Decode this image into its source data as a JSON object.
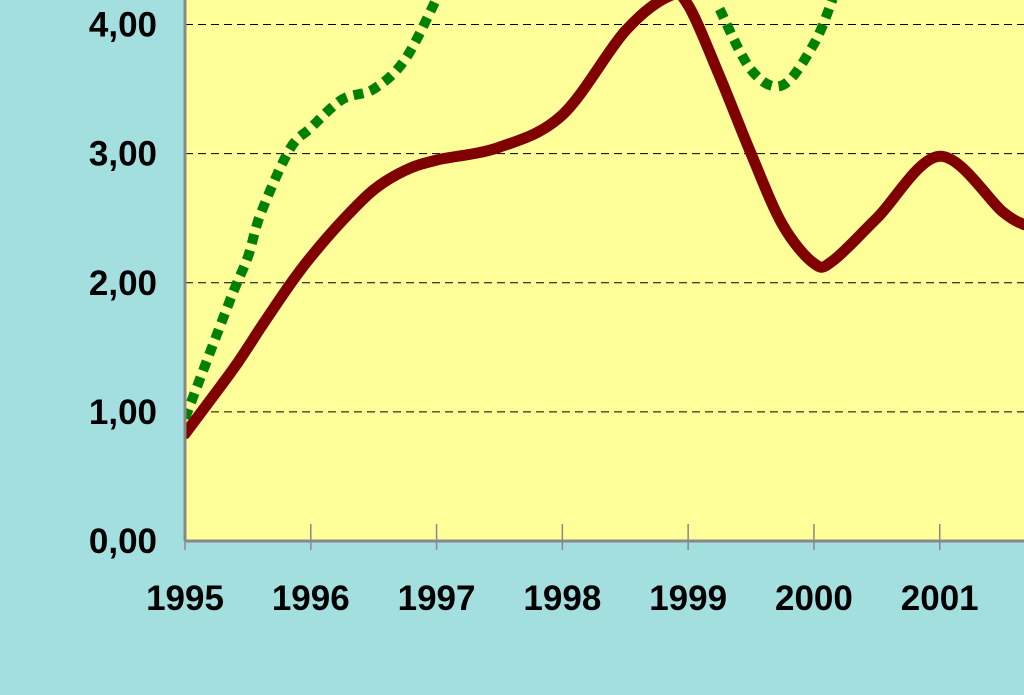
{
  "chart_data": {
    "type": "line",
    "x": [
      1995,
      1995.36,
      1995.5,
      1995.6,
      1995.83,
      1996,
      1996.25,
      1996.5,
      1996.75,
      1997,
      1997.5,
      1998,
      1998.5,
      1998.85,
      1999,
      1999.25,
      1999.5,
      1999.75,
      2000,
      2000.15,
      2000.5,
      2001,
      2001.5,
      2001.67
    ],
    "series": [
      {
        "color": "#800000",
        "style": "solid",
        "values": [
          0.83,
          1.3,
          1.5,
          1.65,
          1.98,
          2.2,
          2.48,
          2.72,
          2.87,
          2.95,
          3.05,
          3.3,
          3.95,
          4.22,
          4.15,
          3.6,
          3.0,
          2.45,
          2.15,
          2.17,
          2.5,
          2.98,
          2.55,
          2.45
        ]
      },
      {
        "color": "#008000",
        "style": "dotted",
        "values": [
          0.95,
          1.87,
          2.2,
          2.53,
          3.03,
          3.2,
          3.42,
          3.5,
          3.73,
          4.2,
          null,
          null,
          null,
          null,
          null,
          4.12,
          3.65,
          3.53,
          3.85,
          4.2,
          null,
          null,
          null,
          null
        ]
      }
    ],
    "xlim": [
      1995,
      2001.67
    ],
    "ylim": [
      0,
      4.19
    ],
    "xticks": [
      1995,
      1996,
      1997,
      1998,
      1999,
      2000,
      2001
    ],
    "yticks": [
      {
        "value": 0,
        "label": "0,00"
      },
      {
        "value": 1,
        "label": "1,00"
      },
      {
        "value": 2,
        "label": "2,00"
      },
      {
        "value": 3,
        "label": "3,00"
      },
      {
        "value": 4,
        "label": "4,00"
      }
    ],
    "grid": true
  }
}
